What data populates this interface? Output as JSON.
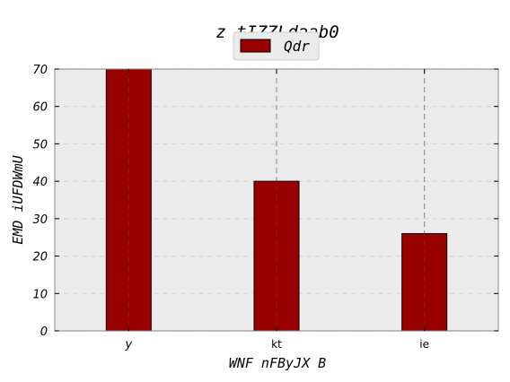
{
  "chart_data": {
    "type": "bar",
    "title": "z   tIZZLdaab0",
    "xlabel": "WNF nFByJX   B",
    "ylabel": "EMD iUFDWmU",
    "categories": [
      "y",
      "kt",
      "ie"
    ],
    "series": [
      {
        "name": "Qdr",
        "values": [
          70,
          40,
          26
        ],
        "color": "#990000"
      }
    ],
    "ylim": [
      0,
      70
    ],
    "yticks": [
      0,
      10,
      20,
      30,
      40,
      50,
      60,
      70
    ],
    "grid": true,
    "legend_position": "top-center",
    "plot_background": "#ebebeb"
  }
}
